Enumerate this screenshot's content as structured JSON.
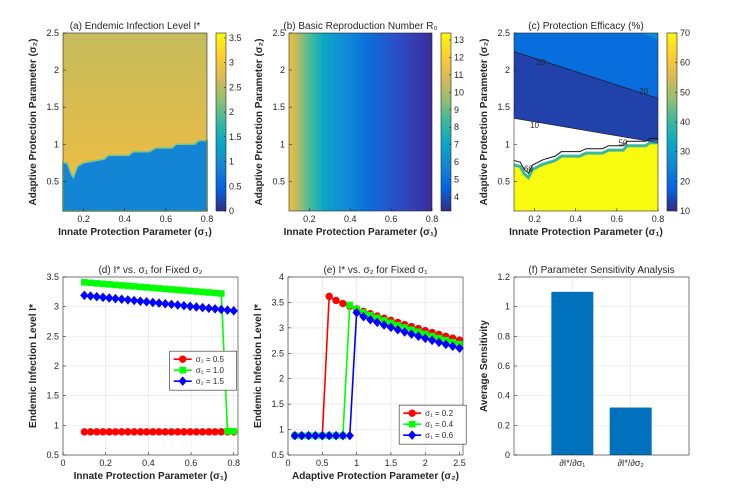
{
  "figure": {
    "colors": {
      "parula": [
        "#352A87",
        "#0363E1",
        "#1485D4",
        "#06A7C6",
        "#38B99E",
        "#92BF73",
        "#D9BA56",
        "#FCCE2E",
        "#F9FB0E"
      ],
      "red": "#FF0000",
      "green": "#00FF00",
      "blue": "#0000FF",
      "bar": "#0072BD",
      "grid": "#E6E6E6",
      "axis": "#262626"
    }
  },
  "chart_data": [
    {
      "id": "a",
      "type": "heatmap",
      "title": "(a) Endemic Infection Level I*",
      "xlabel": "Innate Protection Parameter (σ₁)",
      "ylabel": "Adaptive Protection Parameter (σ₂)",
      "xlim": [
        0.1,
        0.8
      ],
      "ylim": [
        0.1,
        2.5
      ],
      "xticks": [
        "0.2",
        "0.4",
        "0.6",
        "0.8"
      ],
      "yticks": [
        "0.5",
        "1",
        "1.5",
        "2",
        "2.5"
      ],
      "clim": [
        0,
        3.6
      ],
      "cticks": [
        "0",
        "0.5",
        "1",
        "1.5",
        "2",
        "2.5",
        "3",
        "3.5"
      ],
      "boundary": [
        [
          0.1,
          0.75
        ],
        [
          0.12,
          0.75
        ],
        [
          0.14,
          0.6
        ],
        [
          0.15,
          0.55
        ],
        [
          0.17,
          0.7
        ],
        [
          0.2,
          0.75
        ],
        [
          0.3,
          0.8
        ],
        [
          0.32,
          0.85
        ],
        [
          0.42,
          0.85
        ],
        [
          0.44,
          0.9
        ],
        [
          0.52,
          0.9
        ],
        [
          0.55,
          0.95
        ],
        [
          0.63,
          0.95
        ],
        [
          0.65,
          1.0
        ],
        [
          0.74,
          1.0
        ],
        [
          0.76,
          1.05
        ],
        [
          0.8,
          1.05
        ]
      ],
      "upper_value_range": [
        2.6,
        3.1
      ],
      "lower_value": 0.9
    },
    {
      "id": "b",
      "type": "heatmap",
      "title": "(b) Basic Reproduction Number R₀",
      "xlabel": "Innate Protection Parameter (σ₁)",
      "ylabel": "Adaptive Protection Parameter (σ₂)",
      "xlim": [
        0.1,
        0.8
      ],
      "ylim": [
        0.1,
        2.5
      ],
      "xticks": [
        "0.2",
        "0.4",
        "0.6",
        "0.8"
      ],
      "yticks": [
        "0.5",
        "1",
        "1.5",
        "2",
        "2.5"
      ],
      "clim": [
        3.2,
        13.4
      ],
      "cticks": [
        "4",
        "5",
        "6",
        "7",
        "8",
        "9",
        "10",
        "11",
        "12",
        "13"
      ],
      "value_at_xmin": 13.2,
      "value_at_xmax": 3.3
    },
    {
      "id": "c",
      "type": "contour",
      "title": "(c) Protection Efficacy (%)",
      "xlabel": "Innate Protection Parameter (σ₁)",
      "ylabel": "Adaptive Protection Parameter (σ₂)",
      "xlim": [
        0.1,
        0.8
      ],
      "ylim": [
        0.1,
        2.5
      ],
      "xticks": [
        "0.2",
        "0.4",
        "0.6",
        "0.8"
      ],
      "yticks": [
        "0.5",
        "1",
        "1.5",
        "2",
        "2.5"
      ],
      "clim": [
        10,
        70
      ],
      "cticks": [
        "10",
        "20",
        "30",
        "40",
        "50",
        "60",
        "70"
      ],
      "contour_labels": [
        "20",
        "20",
        "10",
        "50",
        "60"
      ]
    },
    {
      "id": "d",
      "type": "line",
      "title": "(d) I* vs. σ₁ for Fixed σ₂",
      "xlabel": "Innate Protection Parameter (σ₁)",
      "ylabel": "Endemic Infection Level I*",
      "xlim": [
        0,
        0.82
      ],
      "ylim": [
        0.5,
        3.5
      ],
      "xticks": [
        0,
        0.2,
        0.4,
        0.6,
        0.8
      ],
      "yticks": [
        0.5,
        1,
        1.5,
        2,
        2.5,
        3,
        3.5
      ],
      "legend": "mid-right",
      "series": [
        {
          "name": "σ₂ = 0.5",
          "color": "red",
          "marker": "circle",
          "x_range": [
            0.1,
            0.8
          ],
          "n": 25,
          "y_const": 0.89
        },
        {
          "name": "σ₂ = 1.0",
          "color": "green",
          "marker": "square",
          "x_range": [
            0.1,
            0.8
          ],
          "n": 25,
          "y_start": 3.41,
          "y_end": 3.22,
          "drop_after": 0.75,
          "y_drop": 0.9
        },
        {
          "name": "σ₂ = 1.5",
          "color": "blue",
          "marker": "diamond",
          "x_range": [
            0.1,
            0.8
          ],
          "n": 25,
          "y_start": 3.19,
          "y_end": 2.93
        }
      ]
    },
    {
      "id": "e",
      "type": "line",
      "title": "(e) I* vs. σ₂ for Fixed σ₁",
      "xlabel": "Adaptive Protection Parameter (σ₂)",
      "ylabel": "Endemic Infection Level I*",
      "xlim": [
        0,
        2.55
      ],
      "ylim": [
        0.5,
        4
      ],
      "xticks": [
        0,
        0.5,
        1,
        1.5,
        2,
        2.5
      ],
      "yticks": [
        0.5,
        1,
        1.5,
        2,
        2.5,
        3,
        3.5,
        4
      ],
      "legend": "bottom-right",
      "series": [
        {
          "name": "σ₁ = 0.2",
          "color": "red",
          "marker": "circle",
          "x_range": [
            0.1,
            2.5
          ],
          "n": 25,
          "jump_at": 0.6,
          "y_low": 0.88,
          "y_high": [
            3.62,
            2.76
          ]
        },
        {
          "name": "σ₁ = 0.4",
          "color": "green",
          "marker": "square",
          "x_range": [
            0.1,
            2.5
          ],
          "n": 25,
          "jump_at": 0.9,
          "y_low": 0.88,
          "y_high": [
            3.45,
            2.68
          ]
        },
        {
          "name": "σ₁ = 0.6",
          "color": "blue",
          "marker": "diamond",
          "x_range": [
            0.1,
            2.5
          ],
          "n": 25,
          "jump_at": 1.0,
          "y_low": 0.88,
          "y_high": [
            3.3,
            2.6
          ]
        }
      ]
    },
    {
      "id": "f",
      "type": "bar",
      "title": "(f) Parameter Sensitivity Analysis",
      "ylabel": "Average Sensitivity",
      "categories": [
        "∂I*/∂σ₁",
        "∂I*/∂σ₂"
      ],
      "values": [
        1.1,
        0.32
      ],
      "ylim": [
        0,
        1.2
      ],
      "yticks": [
        0,
        0.2,
        0.4,
        0.6,
        0.8,
        1,
        1.2
      ]
    }
  ]
}
